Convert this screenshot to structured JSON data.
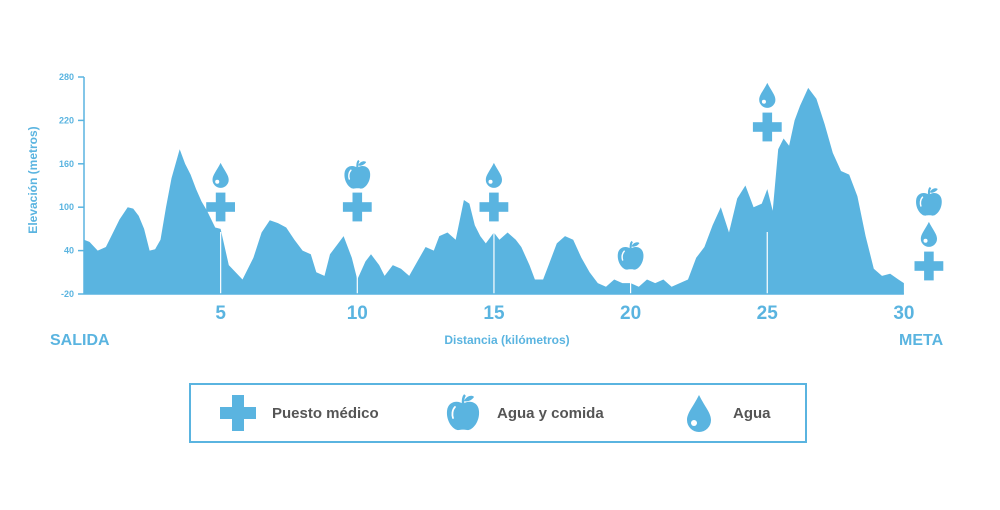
{
  "colors": {
    "accent": "#5ab4e0",
    "legend_text": "#555555"
  },
  "start_label": "SALIDA",
  "finish_label": "META",
  "chart_data": {
    "type": "area",
    "xlabel": "Distancia (kilómetros)",
    "ylabel": "Elevación (metros)",
    "xlim": [
      0,
      31
    ],
    "ylim": [
      -20,
      280
    ],
    "y_ticks": [
      -20,
      40,
      100,
      160,
      220,
      280
    ],
    "x_ticks": [
      5,
      10,
      15,
      20,
      25,
      30
    ],
    "grid": false,
    "x": [
      0,
      0.2,
      0.5,
      0.8,
      1.0,
      1.3,
      1.6,
      1.8,
      2.0,
      2.2,
      2.4,
      2.6,
      2.8,
      3.0,
      3.2,
      3.5,
      3.7,
      3.9,
      4.1,
      4.3,
      4.5,
      4.8,
      5.0,
      5.3,
      5.5,
      5.8,
      6.2,
      6.5,
      6.8,
      7.1,
      7.4,
      7.7,
      8.0,
      8.3,
      8.5,
      8.8,
      9.0,
      9.3,
      9.5,
      9.8,
      10.0,
      10.3,
      10.5,
      10.8,
      11.0,
      11.3,
      11.6,
      11.9,
      12.2,
      12.5,
      12.8,
      13.0,
      13.3,
      13.6,
      13.9,
      14.1,
      14.3,
      14.5,
      14.7,
      15.0,
      15.2,
      15.5,
      15.8,
      16.0,
      16.3,
      16.5,
      16.8,
      17.0,
      17.3,
      17.6,
      17.9,
      18.2,
      18.5,
      18.8,
      19.1,
      19.4,
      19.7,
      20.0,
      20.3,
      20.6,
      20.9,
      21.2,
      21.5,
      21.8,
      22.1,
      22.4,
      22.7,
      23.0,
      23.3,
      23.6,
      23.9,
      24.2,
      24.5,
      24.8,
      25.0,
      25.2,
      25.4,
      25.6,
      25.8,
      26.0,
      26.2,
      26.5,
      26.8,
      27.1,
      27.4,
      27.7,
      28.0,
      28.3,
      28.6,
      28.9,
      29.2,
      29.5,
      29.8,
      30.0
    ],
    "y": [
      55,
      52,
      40,
      45,
      60,
      83,
      100,
      98,
      88,
      70,
      40,
      42,
      55,
      100,
      140,
      180,
      160,
      145,
      125,
      108,
      95,
      72,
      70,
      20,
      12,
      0,
      30,
      65,
      82,
      78,
      72,
      55,
      40,
      35,
      10,
      5,
      35,
      50,
      60,
      30,
      0,
      25,
      35,
      20,
      5,
      20,
      15,
      5,
      25,
      45,
      40,
      60,
      65,
      55,
      110,
      105,
      75,
      60,
      50,
      65,
      55,
      65,
      55,
      45,
      20,
      0,
      0,
      20,
      50,
      60,
      55,
      30,
      10,
      -5,
      -10,
      0,
      -5,
      -5,
      -10,
      0,
      -5,
      0,
      -10,
      -5,
      0,
      30,
      45,
      75,
      100,
      65,
      112,
      130,
      100,
      105,
      125,
      95,
      180,
      195,
      185,
      220,
      240,
      265,
      250,
      215,
      175,
      150,
      145,
      115,
      60,
      15,
      5,
      8,
      0,
      -5
    ],
    "markers": [
      {
        "km": 5,
        "icons": [
          "water",
          "medical"
        ]
      },
      {
        "km": 10,
        "icons": [
          "food",
          "medical"
        ]
      },
      {
        "km": 15,
        "icons": [
          "water",
          "medical"
        ]
      },
      {
        "km": 20,
        "icons": [
          "food"
        ]
      },
      {
        "km": 25,
        "icons": [
          "water",
          "medical"
        ]
      },
      {
        "km": 30,
        "icons": [
          "food",
          "water",
          "medical"
        ]
      }
    ]
  },
  "legend": [
    {
      "icon": "medical",
      "label": "Puesto médico"
    },
    {
      "icon": "food",
      "label": "Agua y comida"
    },
    {
      "icon": "water",
      "label": "Agua"
    }
  ]
}
